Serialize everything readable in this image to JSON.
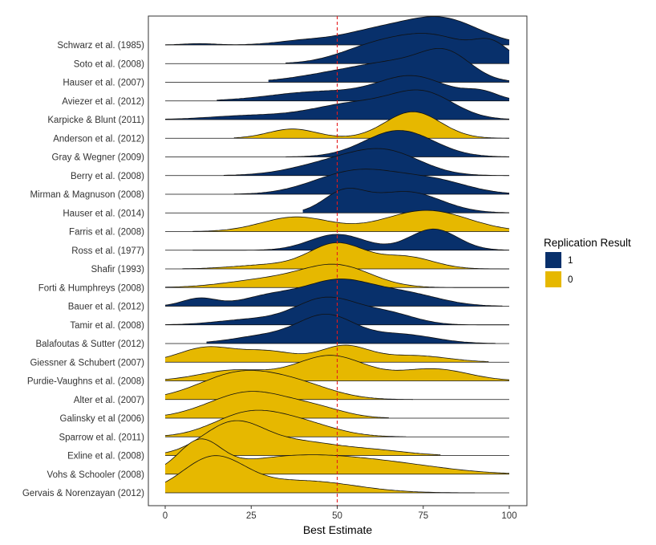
{
  "chart_data": {
    "type": "ridgeline",
    "xlabel": "Best Estimate",
    "xlim": [
      0,
      100
    ],
    "xticks": [
      0,
      25,
      50,
      75,
      100
    ],
    "reference_line": {
      "x": 50,
      "color": "#e41a1c",
      "style": "dashed"
    },
    "legend": {
      "title": "Replication Result",
      "placement": "right",
      "entries": [
        {
          "label": "1",
          "color": "#08306b"
        },
        {
          "label": "0",
          "color": "#e6b800"
        }
      ]
    },
    "series": [
      {
        "name": "Schwarz et al. (1985)",
        "result": "1",
        "range": [
          0,
          100
        ],
        "peaks": [
          [
            10,
            0.05,
            5
          ],
          [
            40,
            0.15,
            8
          ],
          [
            60,
            0.45,
            10
          ],
          [
            80,
            1.0,
            11
          ]
        ]
      },
      {
        "name": "Soto et al. (2008)",
        "result": "1",
        "range": [
          35,
          100
        ],
        "peaks": [
          [
            60,
            0.55,
            10
          ],
          [
            78,
            1.0,
            11
          ],
          [
            95,
            0.6,
            5
          ]
        ]
      },
      {
        "name": "Hauser et al. (2007)",
        "result": "1",
        "range": [
          30,
          100
        ],
        "peaks": [
          [
            50,
            0.3,
            12
          ],
          [
            70,
            0.7,
            12
          ],
          [
            82,
            0.8,
            7
          ]
        ]
      },
      {
        "name": "Aviezer et al. (2012)",
        "result": "1",
        "range": [
          15,
          100
        ],
        "peaks": [
          [
            45,
            0.35,
            14
          ],
          [
            72,
            0.9,
            10
          ],
          [
            92,
            0.3,
            5
          ]
        ]
      },
      {
        "name": "Karpicke & Blunt (2011)",
        "result": "1",
        "range": [
          0,
          100
        ],
        "peaks": [
          [
            25,
            0.15,
            12
          ],
          [
            55,
            0.6,
            12
          ],
          [
            75,
            0.95,
            9
          ]
        ]
      },
      {
        "name": "Anderson et al. (2012)",
        "result": "0",
        "range": [
          20,
          100
        ],
        "peaks": [
          [
            37,
            0.35,
            7
          ],
          [
            72,
            1.0,
            8
          ]
        ]
      },
      {
        "name": "Gray & Wegner (2009)",
        "result": "1",
        "range": [
          35,
          100
        ],
        "peaks": [
          [
            68,
            1.0,
            10
          ]
        ]
      },
      {
        "name": "Berry et al. (2008)",
        "result": "1",
        "range": [
          17,
          100
        ],
        "peaks": [
          [
            50,
            0.5,
            12
          ],
          [
            65,
            0.75,
            10
          ]
        ]
      },
      {
        "name": "Mirman & Magnuson (2008)",
        "result": "1",
        "range": [
          20,
          100
        ],
        "peaks": [
          [
            48,
            0.4,
            10
          ],
          [
            60,
            0.65,
            10
          ],
          [
            78,
            0.5,
            10
          ]
        ]
      },
      {
        "name": "Hauser et al. (2014)",
        "result": "1",
        "range": [
          40,
          100
        ],
        "peaks": [
          [
            52,
            0.75,
            6
          ],
          [
            70,
            0.8,
            10
          ]
        ]
      },
      {
        "name": "Farris et al. (2008)",
        "result": "0",
        "range": [
          8,
          100
        ],
        "peaks": [
          [
            38,
            0.55,
            10
          ],
          [
            76,
            0.8,
            12
          ]
        ]
      },
      {
        "name": "Ross et al. (1977)",
        "result": "1",
        "range": [
          8,
          100
        ],
        "peaks": [
          [
            50,
            0.6,
            8
          ],
          [
            78,
            0.8,
            7
          ]
        ]
      },
      {
        "name": "Shafir (1993)",
        "result": "0",
        "range": [
          5,
          100
        ],
        "peaks": [
          [
            30,
            0.15,
            10
          ],
          [
            50,
            0.95,
            8
          ],
          [
            70,
            0.45,
            8
          ]
        ]
      },
      {
        "name": "Forti & Humphreys (2008)",
        "result": "0",
        "range": [
          0,
          100
        ],
        "peaks": [
          [
            30,
            0.3,
            12
          ],
          [
            50,
            0.8,
            10
          ]
        ]
      },
      {
        "name": "Bauer et al. (2012)",
        "result": "1",
        "range": [
          0,
          98
        ],
        "peaks": [
          [
            10,
            0.3,
            5
          ],
          [
            30,
            0.35,
            8
          ],
          [
            50,
            0.95,
            10
          ],
          [
            70,
            0.45,
            10
          ]
        ]
      },
      {
        "name": "Tamir et al. (2008)",
        "result": "1",
        "range": [
          0,
          100
        ],
        "peaks": [
          [
            25,
            0.2,
            10
          ],
          [
            47,
            1.0,
            9
          ],
          [
            65,
            0.4,
            8
          ]
        ]
      },
      {
        "name": "Balafoutas & Sutter (2012)",
        "result": "1",
        "range": [
          12,
          96
        ],
        "peaks": [
          [
            30,
            0.3,
            10
          ],
          [
            47,
            1.0,
            8
          ],
          [
            68,
            0.35,
            10
          ]
        ]
      },
      {
        "name": "Giessner & Schubert (2007)",
        "result": "0",
        "range": [
          0,
          94
        ],
        "peaks": [
          [
            12,
            0.55,
            8
          ],
          [
            30,
            0.4,
            8
          ],
          [
            52,
            0.6,
            7
          ],
          [
            72,
            0.25,
            10
          ]
        ]
      },
      {
        "name": "Purdie-Vaughns et al. (2008)",
        "result": "0",
        "range": [
          0,
          100
        ],
        "peaks": [
          [
            20,
            0.4,
            10
          ],
          [
            48,
            0.95,
            10
          ],
          [
            78,
            0.45,
            10
          ]
        ]
      },
      {
        "name": "Alter et al. (2007)",
        "result": "0",
        "range": [
          0,
          72
        ],
        "peaks": [
          [
            22,
            1.0,
            12
          ],
          [
            40,
            0.4,
            10
          ]
        ]
      },
      {
        "name": "Galinsky et al (2006)",
        "result": "0",
        "range": [
          0,
          65
        ],
        "peaks": [
          [
            25,
            1.0,
            12
          ],
          [
            45,
            0.25,
            8
          ]
        ]
      },
      {
        "name": "Sparrow et al. (2011)",
        "result": "0",
        "range": [
          0,
          70
        ],
        "peaks": [
          [
            24,
            0.85,
            10
          ],
          [
            40,
            0.45,
            10
          ]
        ]
      },
      {
        "name": "Exline et al. (2008)",
        "result": "0",
        "range": [
          0,
          80
        ],
        "peaks": [
          [
            20,
            1.25,
            9
          ],
          [
            40,
            0.45,
            10
          ],
          [
            60,
            0.2,
            10
          ]
        ]
      },
      {
        "name": "Vohs & Schooler (2008)",
        "result": "0",
        "range": [
          0,
          100
        ],
        "peaks": [
          [
            10,
            1.1,
            6
          ],
          [
            40,
            0.7,
            20
          ],
          [
            70,
            0.2,
            15
          ]
        ]
      },
      {
        "name": "Gervais & Norenzayan (2012)",
        "result": "0",
        "range": [
          0,
          90
        ],
        "peaks": [
          [
            14,
            1.3,
            9
          ],
          [
            40,
            0.45,
            15
          ]
        ]
      }
    ]
  }
}
